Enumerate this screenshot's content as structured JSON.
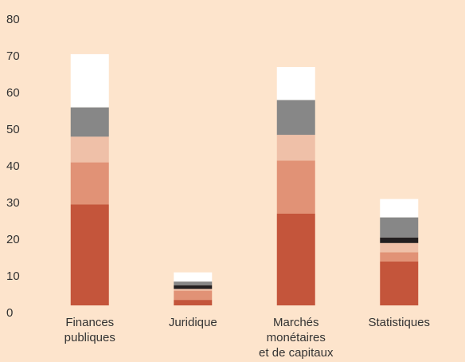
{
  "chart_data": {
    "type": "stacked_bar",
    "categories": [
      [
        "Finances",
        "publiques"
      ],
      [
        "Juridique"
      ],
      [
        "Marchés",
        "monétaires",
        "et de capitaux"
      ],
      [
        "Statistiques"
      ]
    ],
    "series": [
      {
        "color": "#c4553b",
        "values": [
          27.5,
          1.5,
          25,
          12
        ]
      },
      {
        "color": "#e19276",
        "values": [
          11.5,
          2.5,
          14.5,
          2.5
        ]
      },
      {
        "color": "#efc0a8",
        "values": [
          7,
          0.5,
          7,
          2.5
        ]
      },
      {
        "color": "#231f20",
        "values": [
          0,
          1,
          0,
          1.5
        ]
      },
      {
        "color": "#878787",
        "values": [
          8,
          1,
          9.5,
          5.5
        ]
      },
      {
        "color": "#ffffff",
        "values": [
          14.5,
          2.5,
          9,
          5
        ]
      }
    ],
    "ylim": [
      0,
      80
    ],
    "yticks": [
      0,
      10,
      20,
      30,
      40,
      50,
      60,
      70,
      80
    ]
  }
}
